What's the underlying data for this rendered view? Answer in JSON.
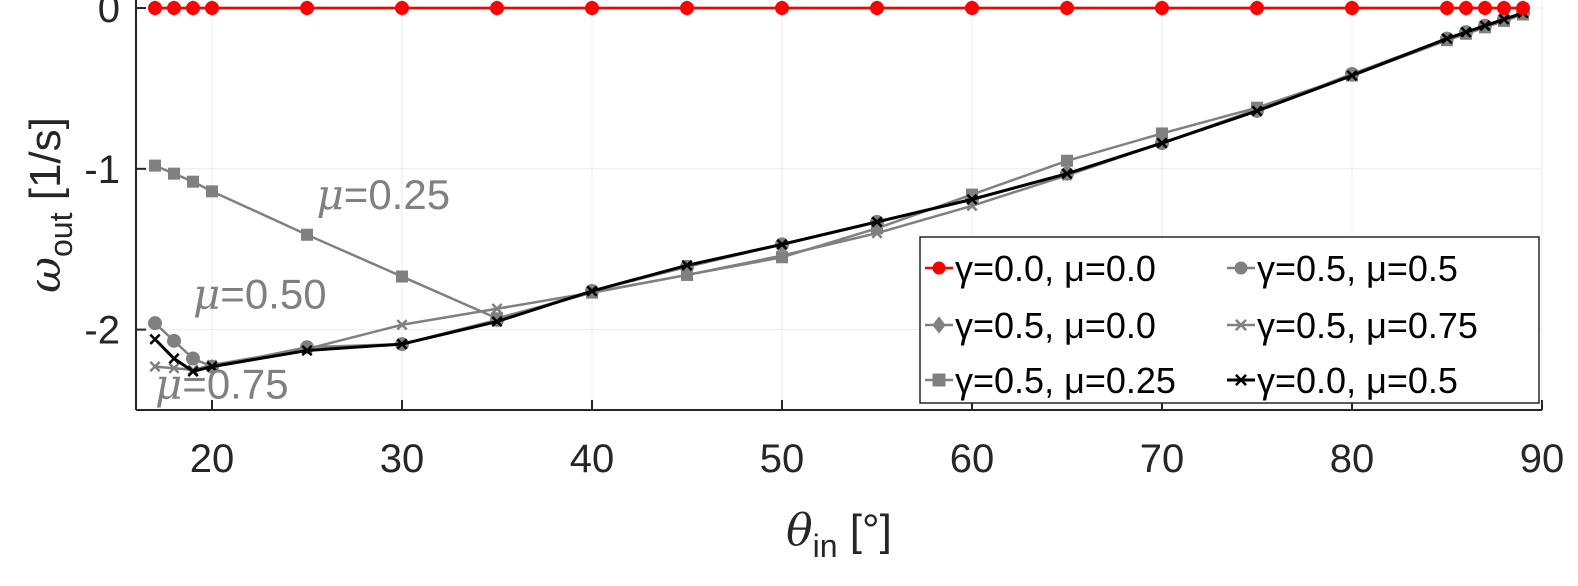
{
  "chart_data": {
    "type": "line",
    "xlabel": {
      "symbol": "θ",
      "sub": "in",
      "unit": " [°]"
    },
    "ylabel": {
      "symbol": "ω",
      "sub": "out",
      "unit": " [1/s]"
    },
    "xlim": [
      16,
      90
    ],
    "ylim": [
      -2.5,
      0.05
    ],
    "xticks": [
      "20",
      "30",
      "40",
      "50",
      "60",
      "70",
      "80",
      "90"
    ],
    "yticks": [
      "0",
      "-1",
      "-2"
    ],
    "grid": true,
    "legend_position": "bottom-right",
    "series": [
      {
        "name": "γ=0.0, μ=0.0",
        "color": "#ff0000",
        "marker": "circle",
        "x": [
          17,
          18,
          19,
          20,
          25,
          30,
          35,
          40,
          45,
          50,
          55,
          60,
          65,
          70,
          75,
          80,
          85,
          86,
          87,
          88,
          89
        ],
        "y": [
          0,
          0,
          0,
          0,
          0,
          0,
          0,
          0,
          0,
          0,
          0,
          0,
          0,
          0,
          0,
          0,
          0,
          0,
          0,
          0,
          0
        ]
      },
      {
        "name": "γ=0.5, μ=0.0",
        "color": "#808080",
        "marker": "diamond",
        "x": [
          17,
          18,
          19,
          20,
          25,
          30,
          35,
          40,
          45,
          50,
          55,
          60,
          65,
          70,
          75,
          80,
          85,
          86,
          87,
          88,
          89
        ],
        "y": [
          0,
          0,
          0,
          0,
          0,
          0,
          0,
          0,
          0,
          0,
          0,
          0,
          0,
          0,
          0,
          0,
          0,
          0,
          0,
          0,
          0
        ]
      },
      {
        "name": "γ=0.5, μ=0.25",
        "color": "#808080",
        "marker": "square",
        "x": [
          17,
          18,
          19,
          20,
          25,
          30,
          35,
          40,
          45,
          50,
          55,
          60,
          65,
          70,
          75,
          80,
          85,
          86,
          87,
          88,
          89
        ],
        "y": [
          -0.98,
          -1.03,
          -1.08,
          -1.14,
          -1.41,
          -1.67,
          -1.93,
          -1.77,
          -1.66,
          -1.55,
          -1.37,
          -1.16,
          -0.95,
          -0.78,
          -0.62,
          -0.42,
          -0.2,
          -0.16,
          -0.12,
          -0.08,
          -0.04
        ]
      },
      {
        "name": "γ=0.5, μ=0.5",
        "color": "#808080",
        "marker": "circle",
        "x": [
          17,
          18,
          19,
          20,
          25,
          30,
          35,
          40,
          45,
          50,
          55,
          60,
          65,
          70,
          75,
          80,
          85,
          86,
          87,
          88,
          89
        ],
        "y": [
          -1.96,
          -2.07,
          -2.18,
          -2.23,
          -2.11,
          -2.09,
          -1.94,
          -1.76,
          -1.61,
          -1.47,
          -1.33,
          -1.19,
          -1.03,
          -0.84,
          -0.64,
          -0.41,
          -0.19,
          -0.15,
          -0.11,
          -0.07,
          -0.03
        ]
      },
      {
        "name": "γ=0.5, μ=0.75",
        "color": "#808080",
        "marker": "x",
        "x": [
          17,
          18,
          19,
          20,
          25,
          30,
          35,
          40,
          45,
          50,
          55,
          60,
          65,
          70,
          75,
          80,
          85,
          86,
          87,
          88,
          89
        ],
        "y": [
          -2.23,
          -2.24,
          -2.25,
          -2.22,
          -2.12,
          -1.97,
          -1.87,
          -1.77,
          -1.66,
          -1.54,
          -1.4,
          -1.23,
          -1.04,
          -0.84,
          -0.63,
          -0.42,
          -0.2,
          -0.16,
          -0.12,
          -0.08,
          -0.04
        ]
      },
      {
        "name": "γ=0.0, μ=0.5",
        "color": "#000000",
        "marker": "x",
        "x": [
          17,
          18,
          19,
          20,
          25,
          30,
          35,
          40,
          45,
          50,
          55,
          60,
          65,
          70,
          75,
          80,
          85,
          86,
          87,
          88,
          89
        ],
        "y": [
          -2.06,
          -2.18,
          -2.26,
          -2.23,
          -2.13,
          -2.09,
          -1.95,
          -1.76,
          -1.6,
          -1.47,
          -1.33,
          -1.19,
          -1.03,
          -0.84,
          -0.64,
          -0.42,
          -0.19,
          -0.15,
          -0.11,
          -0.07,
          -0.03
        ]
      }
    ],
    "annotations": [
      {
        "prefix": "μ",
        "text": "=0.25",
        "x": 25.5,
        "y": -1.25
      },
      {
        "prefix": "μ",
        "text": "=0.50",
        "x": 19,
        "y": -1.87
      },
      {
        "prefix": "μ",
        "text": "=0.75",
        "x": 17,
        "y": -2.43
      }
    ]
  }
}
